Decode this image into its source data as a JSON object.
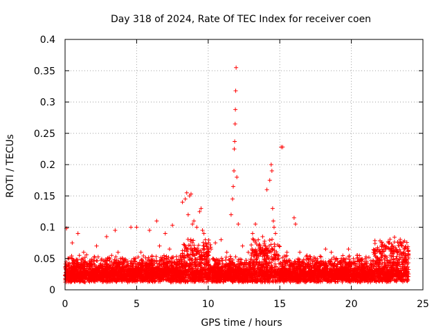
{
  "chart_data": {
    "type": "scatter",
    "title": "Day 318 of 2024, Rate Of TEC Index for receiver coen",
    "xlabel": "GPS time / hours",
    "ylabel": "ROTI / TECUs",
    "xlim": [
      0,
      25
    ],
    "ylim": [
      0,
      0.4
    ],
    "xticks": [
      0,
      5,
      10,
      15,
      20,
      25
    ],
    "xtick_labels": [
      "0",
      "5",
      "10",
      "15",
      "20",
      "25"
    ],
    "yticks": [
      0,
      0.05,
      0.1,
      0.15,
      0.2,
      0.25,
      0.3,
      0.35,
      0.4
    ],
    "ytick_labels": [
      "0",
      "0.05",
      "0.1",
      "0.15",
      "0.2",
      "0.25",
      "0.3",
      "0.35",
      "0.4"
    ],
    "grid": true,
    "marker": "+",
    "marker_color": "#ff0000",
    "series": [
      {
        "name": "ROTI",
        "x": [
          0.1,
          0.2,
          0.5,
          0.9,
          1.0,
          1.3,
          1.8,
          2.2,
          2.9,
          3.1,
          3.5,
          3.7,
          4.1,
          4.6,
          4.8,
          5.0,
          5.3,
          5.9,
          6.4,
          6.6,
          7.0,
          7.3,
          7.5,
          8.2,
          8.4,
          8.5,
          8.6,
          8.7,
          8.8,
          8.9,
          9.0,
          9.2,
          9.4,
          9.5,
          9.6,
          9.7,
          9.8,
          10.2,
          10.5,
          10.9,
          11.3,
          11.6,
          11.7,
          11.75,
          11.8,
          11.82,
          11.85,
          11.88,
          11.9,
          11.92,
          11.95,
          12.0,
          12.1,
          12.4,
          12.8,
          13.1,
          13.3,
          13.5,
          13.8,
          14.1,
          14.3,
          14.4,
          14.45,
          14.5,
          14.55,
          14.6,
          14.7,
          15.1,
          15.2,
          15.5,
          16.0,
          16.1,
          16.4,
          16.9,
          17.5,
          18.2,
          18.6,
          19.3,
          19.8,
          20.4,
          21.0,
          21.6,
          22.1,
          22.3,
          22.6,
          22.8,
          23.2,
          23.5,
          23.8
        ],
        "y": [
          0.098,
          0.05,
          0.075,
          0.09,
          0.055,
          0.06,
          0.045,
          0.07,
          0.085,
          0.05,
          0.095,
          0.06,
          0.045,
          0.1,
          0.05,
          0.1,
          0.06,
          0.095,
          0.11,
          0.07,
          0.09,
          0.065,
          0.103,
          0.14,
          0.145,
          0.155,
          0.12,
          0.15,
          0.153,
          0.105,
          0.11,
          0.1,
          0.125,
          0.13,
          0.095,
          0.09,
          0.08,
          0.065,
          0.075,
          0.08,
          0.06,
          0.12,
          0.145,
          0.165,
          0.19,
          0.225,
          0.237,
          0.265,
          0.288,
          0.318,
          0.355,
          0.18,
          0.105,
          0.07,
          0.06,
          0.09,
          0.105,
          0.08,
          0.085,
          0.16,
          0.175,
          0.2,
          0.19,
          0.13,
          0.11,
          0.1,
          0.09,
          0.228,
          0.228,
          0.06,
          0.115,
          0.105,
          0.06,
          0.055,
          0.05,
          0.065,
          0.06,
          0.05,
          0.065,
          0.055,
          0.05,
          0.06,
          0.07,
          0.055,
          0.075,
          0.065,
          0.06,
          0.07,
          0.045
        ]
      }
    ]
  }
}
